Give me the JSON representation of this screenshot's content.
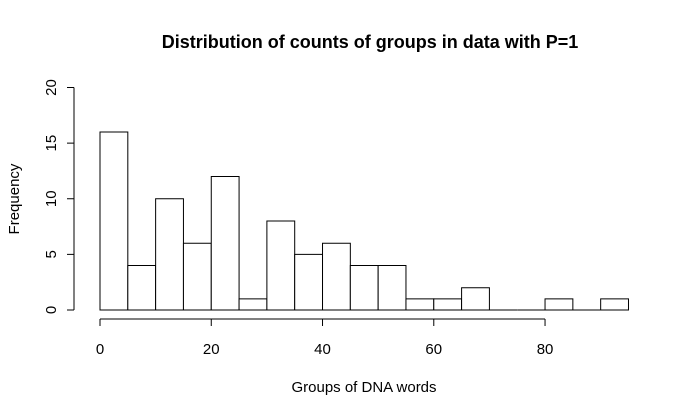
{
  "chart_data": {
    "type": "bar",
    "title": "Distribution of counts of groups in data with P=1",
    "xlabel": "Groups of DNA words",
    "ylabel": "Frequency",
    "bin_width": 5,
    "bins": [
      {
        "x0": 0,
        "x1": 5,
        "count": 16
      },
      {
        "x0": 5,
        "x1": 10,
        "count": 4
      },
      {
        "x0": 10,
        "x1": 15,
        "count": 10
      },
      {
        "x0": 15,
        "x1": 20,
        "count": 6
      },
      {
        "x0": 20,
        "x1": 25,
        "count": 12
      },
      {
        "x0": 25,
        "x1": 30,
        "count": 1
      },
      {
        "x0": 30,
        "x1": 35,
        "count": 8
      },
      {
        "x0": 35,
        "x1": 40,
        "count": 5
      },
      {
        "x0": 40,
        "x1": 45,
        "count": 6
      },
      {
        "x0": 45,
        "x1": 50,
        "count": 4
      },
      {
        "x0": 50,
        "x1": 55,
        "count": 4
      },
      {
        "x0": 55,
        "x1": 60,
        "count": 1
      },
      {
        "x0": 60,
        "x1": 65,
        "count": 1
      },
      {
        "x0": 65,
        "x1": 70,
        "count": 2
      },
      {
        "x0": 70,
        "x1": 75,
        "count": 0
      },
      {
        "x0": 75,
        "x1": 80,
        "count": 0
      },
      {
        "x0": 80,
        "x1": 85,
        "count": 1
      },
      {
        "x0": 85,
        "x1": 90,
        "count": 0
      },
      {
        "x0": 90,
        "x1": 95,
        "count": 1
      }
    ],
    "xlim": [
      0,
      95
    ],
    "ylim": [
      0,
      20
    ],
    "x_ticks": [
      0,
      20,
      40,
      60,
      80
    ],
    "y_ticks": [
      0,
      5,
      10,
      15,
      20
    ],
    "x_tick_labels": [
      "0",
      "20",
      "40",
      "60",
      "80"
    ],
    "y_tick_labels": [
      "0",
      "5",
      "10",
      "15",
      "20"
    ],
    "grid": false,
    "legend": "none",
    "bar_fill": "#ffffff",
    "bar_stroke": "#000000"
  }
}
